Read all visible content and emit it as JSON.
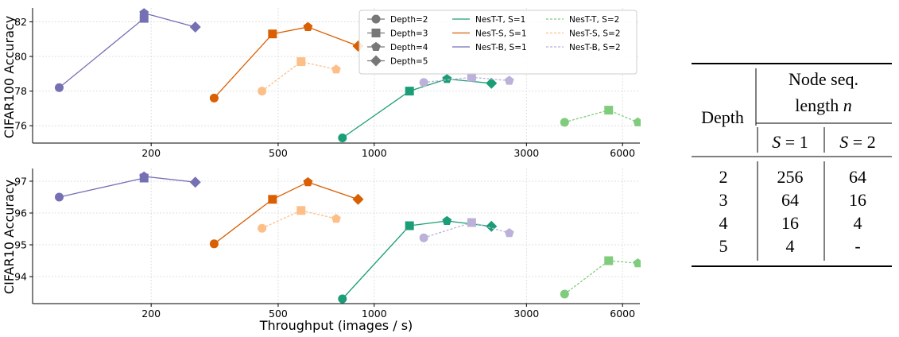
{
  "chart_data": [
    {
      "type": "line",
      "panel": "top",
      "ylabel": "CIFAR100 Accuracy",
      "xlabel": "",
      "xscale": "log",
      "xlim": [
        85,
        6800
      ],
      "ylim": [
        75.0,
        82.8
      ],
      "yticks": [
        "76",
        "78",
        "80",
        "82"
      ],
      "xticks": [
        "200",
        "500",
        "1000",
        "3000",
        "6000"
      ],
      "grid": true,
      "series": [
        {
          "name": "NesT-B, S=1",
          "color": "#7570b3",
          "dashed": false,
          "points": [
            {
              "x": 103,
              "y": 78.2,
              "depth": 2
            },
            {
              "x": 190,
              "y": 82.2,
              "depth": 3
            },
            {
              "x": 190,
              "y": 82.5,
              "depth": 4
            },
            {
              "x": 275,
              "y": 81.7,
              "depth": 5
            }
          ]
        },
        {
          "name": "NesT-S, S=1",
          "color": "#d95f02",
          "dashed": false,
          "points": [
            {
              "x": 315,
              "y": 77.6,
              "depth": 2
            },
            {
              "x": 480,
              "y": 81.3,
              "depth": 3
            },
            {
              "x": 620,
              "y": 81.7,
              "depth": 4
            },
            {
              "x": 890,
              "y": 80.6,
              "depth": 5
            }
          ]
        },
        {
          "name": "NesT-T, S=1",
          "color": "#1b9e77",
          "dashed": false,
          "points": [
            {
              "x": 795,
              "y": 75.3,
              "depth": 2
            },
            {
              "x": 1290,
              "y": 78.0,
              "depth": 3
            },
            {
              "x": 1690,
              "y": 78.7,
              "depth": 4
            },
            {
              "x": 2330,
              "y": 78.45,
              "depth": 5
            }
          ]
        },
        {
          "name": "NesT-B, S=2",
          "color": "#bcb1d8",
          "dashed": true,
          "points": [
            {
              "x": 1430,
              "y": 78.5,
              "depth": 2
            },
            {
              "x": 2020,
              "y": 78.8,
              "depth": 3
            },
            {
              "x": 2650,
              "y": 78.6,
              "depth": 4
            }
          ]
        },
        {
          "name": "NesT-S, S=2",
          "color": "#fdbf87",
          "dashed": true,
          "points": [
            {
              "x": 445,
              "y": 78.0,
              "depth": 2
            },
            {
              "x": 590,
              "y": 79.7,
              "depth": 3
            },
            {
              "x": 760,
              "y": 79.25,
              "depth": 4
            }
          ]
        },
        {
          "name": "NesT-T, S=2",
          "color": "#7fcc7d",
          "dashed": true,
          "points": [
            {
              "x": 3950,
              "y": 76.2,
              "depth": 2
            },
            {
              "x": 5430,
              "y": 76.9,
              "depth": 3
            },
            {
              "x": 6700,
              "y": 76.2,
              "depth": 4
            }
          ]
        }
      ]
    },
    {
      "type": "line",
      "panel": "bottom",
      "ylabel": "CIFAR10 Accuracy",
      "xlabel": "Throughput (images / s)",
      "xscale": "log",
      "xlim": [
        85,
        6800
      ],
      "ylim": [
        93.15,
        97.4
      ],
      "yticks": [
        "94",
        "95",
        "96",
        "97"
      ],
      "xticks": [
        "200",
        "500",
        "1000",
        "3000",
        "6000"
      ],
      "grid": true,
      "series": [
        {
          "name": "NesT-B, S=1",
          "color": "#7570b3",
          "dashed": false,
          "points": [
            {
              "x": 103,
              "y": 96.5,
              "depth": 2
            },
            {
              "x": 190,
              "y": 97.1,
              "depth": 3
            },
            {
              "x": 190,
              "y": 97.15,
              "depth": 4
            },
            {
              "x": 275,
              "y": 96.97,
              "depth": 5
            }
          ]
        },
        {
          "name": "NesT-S, S=1",
          "color": "#d95f02",
          "dashed": false,
          "points": [
            {
              "x": 315,
              "y": 95.03,
              "depth": 2
            },
            {
              "x": 480,
              "y": 96.43,
              "depth": 3
            },
            {
              "x": 620,
              "y": 96.97,
              "depth": 4
            },
            {
              "x": 890,
              "y": 96.43,
              "depth": 5
            }
          ]
        },
        {
          "name": "NesT-T, S=1",
          "color": "#1b9e77",
          "dashed": false,
          "points": [
            {
              "x": 795,
              "y": 93.3,
              "depth": 2
            },
            {
              "x": 1290,
              "y": 95.6,
              "depth": 3
            },
            {
              "x": 1690,
              "y": 95.75,
              "depth": 4
            },
            {
              "x": 2330,
              "y": 95.58,
              "depth": 5
            }
          ]
        },
        {
          "name": "NesT-B, S=2",
          "color": "#bcb1d8",
          "dashed": true,
          "points": [
            {
              "x": 1430,
              "y": 95.22,
              "depth": 2
            },
            {
              "x": 2020,
              "y": 95.7,
              "depth": 3
            },
            {
              "x": 2650,
              "y": 95.37,
              "depth": 4
            }
          ]
        },
        {
          "name": "NesT-S, S=2",
          "color": "#fdbf87",
          "dashed": true,
          "points": [
            {
              "x": 445,
              "y": 95.52,
              "depth": 2
            },
            {
              "x": 590,
              "y": 96.08,
              "depth": 3
            },
            {
              "x": 760,
              "y": 95.82,
              "depth": 4
            }
          ]
        },
        {
          "name": "NesT-T, S=2",
          "color": "#7fcc7d",
          "dashed": true,
          "points": [
            {
              "x": 3950,
              "y": 93.45,
              "depth": 2
            },
            {
              "x": 5430,
              "y": 94.5,
              "depth": 3
            },
            {
              "x": 6700,
              "y": 94.42,
              "depth": 4
            }
          ]
        }
      ]
    }
  ],
  "legend": {
    "markers": [
      {
        "label": "Depth=2",
        "shape": "circle"
      },
      {
        "label": "Depth=3",
        "shape": "square"
      },
      {
        "label": "Depth=4",
        "shape": "pentagon"
      },
      {
        "label": "Depth=5",
        "shape": "diamond"
      }
    ],
    "solid": [
      {
        "label": "NesT-T, S=1",
        "color": "#1b9e77"
      },
      {
        "label": "NesT-S, S=1",
        "color": "#d95f02"
      },
      {
        "label": "NesT-B, S=1",
        "color": "#7570b3"
      }
    ],
    "dashed": [
      {
        "label": "NesT-T, S=2",
        "color": "#7fcc7d"
      },
      {
        "label": "NesT-S, S=2",
        "color": "#fdbf87"
      },
      {
        "label": "NesT-B, S=2",
        "color": "#bcb1d8"
      }
    ]
  },
  "table": {
    "header_depth": "Depth",
    "header_node_line1": "Node seq.",
    "header_node_line2_prefix": "length ",
    "header_node_line2_var": "n",
    "sub_s1_var": "S",
    "sub_s1_rest": " = 1",
    "sub_s2_var": "S",
    "sub_s2_rest": " = 2",
    "rows": [
      {
        "depth": "2",
        "s1": "256",
        "s2": "64"
      },
      {
        "depth": "3",
        "s1": "64",
        "s2": "16"
      },
      {
        "depth": "4",
        "s1": "16",
        "s2": "4"
      },
      {
        "depth": "5",
        "s1": "4",
        "s2": "-"
      }
    ]
  }
}
